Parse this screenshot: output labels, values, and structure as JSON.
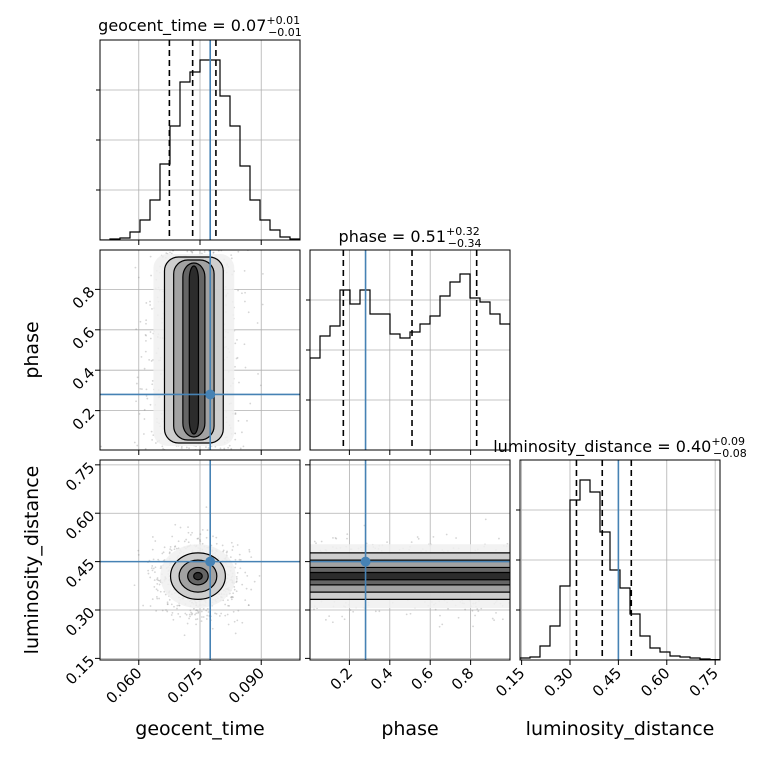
{
  "chart_data": {
    "type": "corner",
    "parameters": [
      "geocent_time",
      "phase",
      "luminosity_distance"
    ],
    "axis_labels": {
      "geocent_time": "geocent_time",
      "phase": "phase",
      "luminosity_distance": "luminosity_distance"
    },
    "titles": [
      {
        "name": "geocent_time",
        "prefix": "geocent_time = ",
        "value": "0.07",
        "plus": "+0.01",
        "minus": "−0.01"
      },
      {
        "name": "phase",
        "prefix": "phase = ",
        "value": "0.51",
        "plus": "+0.32",
        "minus": "−0.34"
      },
      {
        "name": "luminosity_distance",
        "prefix": "luminosity_distance = ",
        "value": "0.40",
        "plus": "+0.09",
        "minus": "−0.08"
      }
    ],
    "ranges": {
      "geocent_time": [
        0.0505,
        0.0995
      ],
      "phase": [
        0.005,
        0.995
      ],
      "luminosity_distance": [
        0.145,
        0.765
      ]
    },
    "ticks": {
      "geocent_time": {
        "values": [
          0.06,
          0.075,
          0.09
        ],
        "labels": [
          "0.060",
          "0.075",
          "0.090"
        ]
      },
      "phase": {
        "values": [
          0.2,
          0.4,
          0.6,
          0.8
        ],
        "labels": [
          "0.2",
          "0.4",
          "0.6",
          "0.8"
        ]
      },
      "luminosity_distance": {
        "values": [
          0.15,
          0.3,
          0.45,
          0.6,
          0.75
        ],
        "labels": [
          "0.15",
          "0.30",
          "0.45",
          "0.60",
          "0.75"
        ]
      }
    },
    "truths": {
      "geocent_time": 0.0775,
      "phase": 0.28,
      "luminosity_distance": 0.45
    },
    "quantiles": {
      "geocent_time": [
        0.0675,
        0.0732,
        0.0789
      ],
      "phase": [
        0.17,
        0.51,
        0.83
      ],
      "luminosity_distance": [
        0.32,
        0.4,
        0.49
      ]
    },
    "histograms": {
      "geocent_time": {
        "edges_start": 0.0505,
        "bin_width": 0.00245,
        "counts": [
          0,
          0.5,
          1,
          4,
          10,
          20,
          38,
          57,
          79,
          84,
          90,
          90,
          72,
          57,
          37,
          20,
          10,
          5,
          1.5,
          0.5
        ]
      },
      "phase": {
        "edges_start": 0.005,
        "bin_width": 0.0495,
        "counts": [
          46,
          57,
          62,
          80,
          73,
          80,
          68,
          68,
          58,
          56,
          59,
          63,
          67,
          77,
          84,
          88,
          76,
          74,
          68,
          63
        ]
      },
      "luminosity_distance": {
        "edges_start": 0.145,
        "bin_width": 0.031,
        "counts": [
          1,
          1.5,
          7,
          17,
          37,
          80,
          90,
          84,
          64,
          45,
          36,
          23,
          12,
          6,
          4,
          2,
          1.5,
          1,
          0.5,
          0.2
        ]
      }
    },
    "hist_ylim": {
      "geocent_time": [
        0,
        100
      ],
      "phase": [
        0,
        100
      ],
      "luminosity_distance": [
        0,
        100
      ]
    },
    "joint": [
      {
        "x": "geocent_time",
        "y": "phase",
        "x_center": 0.0735,
        "x_sigma": 0.0045,
        "y_center": 0.5,
        "y_sigma": 0.28,
        "y_modes": [
          0.22,
          0.48,
          0.75
        ]
      },
      {
        "x": "geocent_time",
        "y": "luminosity_distance",
        "x_center": 0.0745,
        "x_sigma": 0.0042,
        "y_center": 0.405,
        "y_sigma": 0.045,
        "y_modes": [
          0.37,
          0.43
        ]
      },
      {
        "x": "phase",
        "y": "luminosity_distance",
        "x_center": 0.5,
        "x_sigma": 0.3,
        "y_center": 0.405,
        "y_sigma": 0.045,
        "y_modes": [
          0.39,
          0.42
        ]
      }
    ],
    "truth_color": "#4682b4",
    "grid": true
  }
}
